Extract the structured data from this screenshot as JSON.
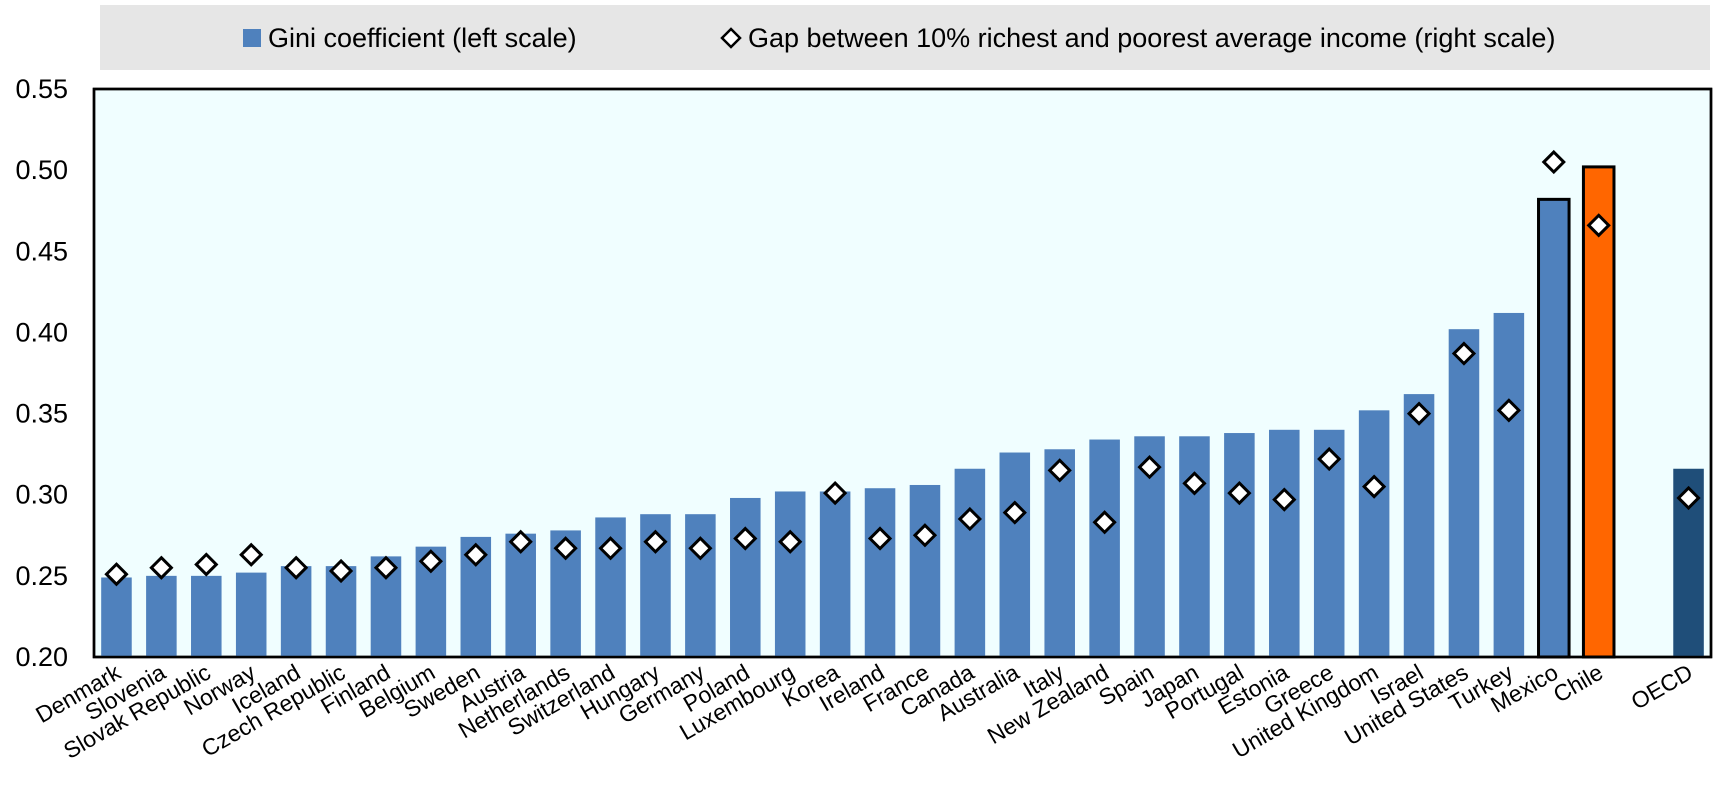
{
  "colors": {
    "bar": "#4f81bd",
    "highlight_chile": "#ff6600",
    "oecd_bar": "#1f4e79",
    "plot_bg": "#f0feff",
    "marker_fill": "#ffffff",
    "marker_stroke": "#000000"
  },
  "chart_data": {
    "type": "bar",
    "title": "",
    "xlabel": "",
    "ylabel": "",
    "legend": {
      "placement": "top",
      "items": [
        {
          "label": "Gini coefficient (left scale)",
          "marker": "square"
        },
        {
          "label": "Gap between 10% richest and poorest average income (right scale)",
          "marker": "diamond"
        }
      ]
    },
    "ylim": [
      0.2,
      0.55
    ],
    "yticks": [
      "0.20",
      "0.25",
      "0.30",
      "0.35",
      "0.40",
      "0.45",
      "0.50",
      "0.55"
    ],
    "grid": false,
    "categories": [
      "Denmark",
      "Slovenia",
      "Slovak Republic",
      "Norway",
      "Iceland",
      "Czech Republic",
      "Finland",
      "Belgium",
      "Sweden",
      "Austria",
      "Netherlands",
      "Switzerland",
      "Hungary",
      "Germany",
      "Poland",
      "Luxembourg",
      "Korea",
      "Ireland",
      "France",
      "Canada",
      "Australia",
      "Italy",
      "New Zealand",
      "Spain",
      "Japan",
      "Portugal",
      "Estonia",
      "Greece",
      "United Kingdom",
      "Israel",
      "United States",
      "Turkey",
      "Mexico",
      "Chile",
      "",
      "OECD"
    ],
    "series": [
      {
        "name": "Gini coefficient (left scale)",
        "type": "bar",
        "values": [
          0.249,
          0.25,
          0.25,
          0.252,
          0.256,
          0.256,
          0.262,
          0.268,
          0.274,
          0.276,
          0.278,
          0.286,
          0.288,
          0.288,
          0.298,
          0.302,
          0.302,
          0.304,
          0.306,
          0.316,
          0.326,
          0.328,
          0.334,
          0.336,
          0.336,
          0.338,
          0.34,
          0.34,
          0.352,
          0.362,
          0.402,
          0.412,
          0.482,
          0.502,
          null,
          0.316
        ]
      },
      {
        "name": "Gap between 10% richest and poorest average income (right scale)",
        "type": "scatter",
        "marker": "diamond",
        "values": [
          0.251,
          0.255,
          0.257,
          0.263,
          0.255,
          0.253,
          0.255,
          0.259,
          0.263,
          0.271,
          0.267,
          0.267,
          0.271,
          0.267,
          0.273,
          0.271,
          0.301,
          0.273,
          0.275,
          0.285,
          0.289,
          0.315,
          0.283,
          0.317,
          0.307,
          0.301,
          0.297,
          0.322,
          0.305,
          0.35,
          0.387,
          0.352,
          0.505,
          0.466,
          null,
          0.298
        ]
      }
    ],
    "highlights": {
      "Chile": "highlight_chile",
      "Mexico": "outlined",
      "OECD": "oecd_bar"
    }
  }
}
